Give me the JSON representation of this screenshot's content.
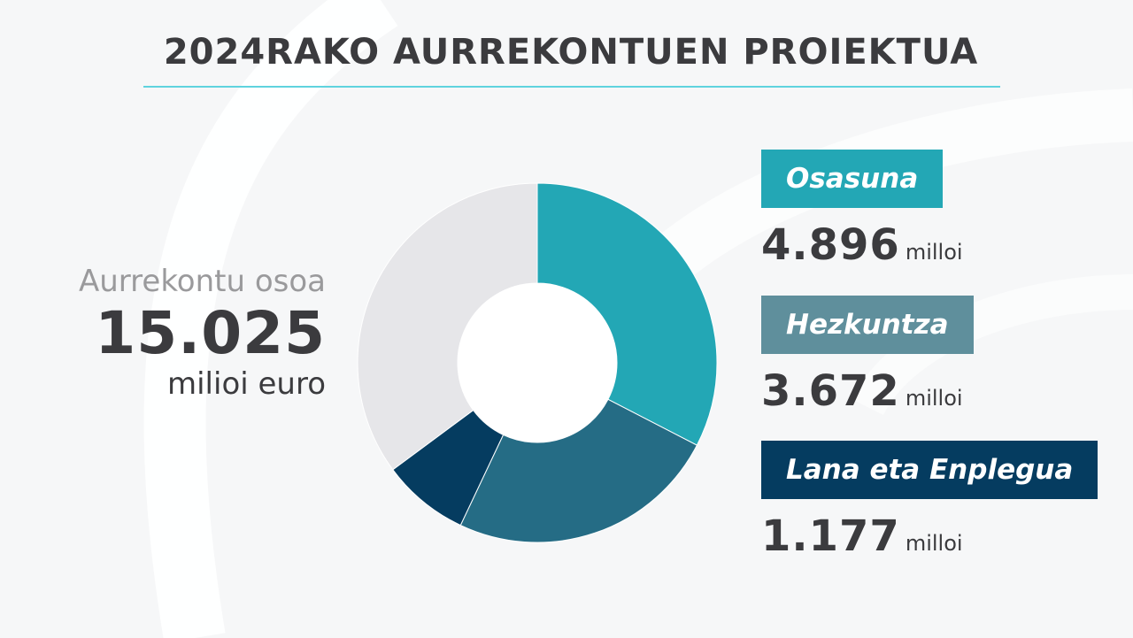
{
  "title": "2024RAKO AURREKONTUEN PROIEKTUA",
  "total": {
    "label": "Aurrekontu osoa",
    "value": "15.025",
    "unit": "milioi euro"
  },
  "colors": {
    "background": "#f6f7f8",
    "title_rule": "#5fd3de",
    "osasuna": "#23a7b5",
    "hezkuntza": "#5f8f9c",
    "hezkuntza_slice": "#256c85",
    "lana": "#053c60",
    "rest": "#e6e6e9"
  },
  "chart_data": {
    "type": "pie",
    "total": 15025,
    "categories": [
      "Osasuna",
      "Hezkuntza",
      "Lana eta Enplegua",
      ""
    ],
    "values": [
      4896,
      3672,
      1177,
      5280
    ],
    "slice_colors": [
      "#23a7b5",
      "#256c85",
      "#053c60",
      "#e6e6e9"
    ],
    "start_angle_deg": 0,
    "direction": "clockwise",
    "donut": true
  },
  "legend": [
    {
      "label": "Osasuna",
      "value": "4.896",
      "unit": "milloi",
      "color": "#23a7b5"
    },
    {
      "label": "Hezkuntza",
      "value": "3.672",
      "unit": "milloi",
      "color": "#5f8f9c"
    },
    {
      "label": "Lana eta Enplegua",
      "value": "1.177",
      "unit": "milloi",
      "color": "#053c60"
    }
  ]
}
